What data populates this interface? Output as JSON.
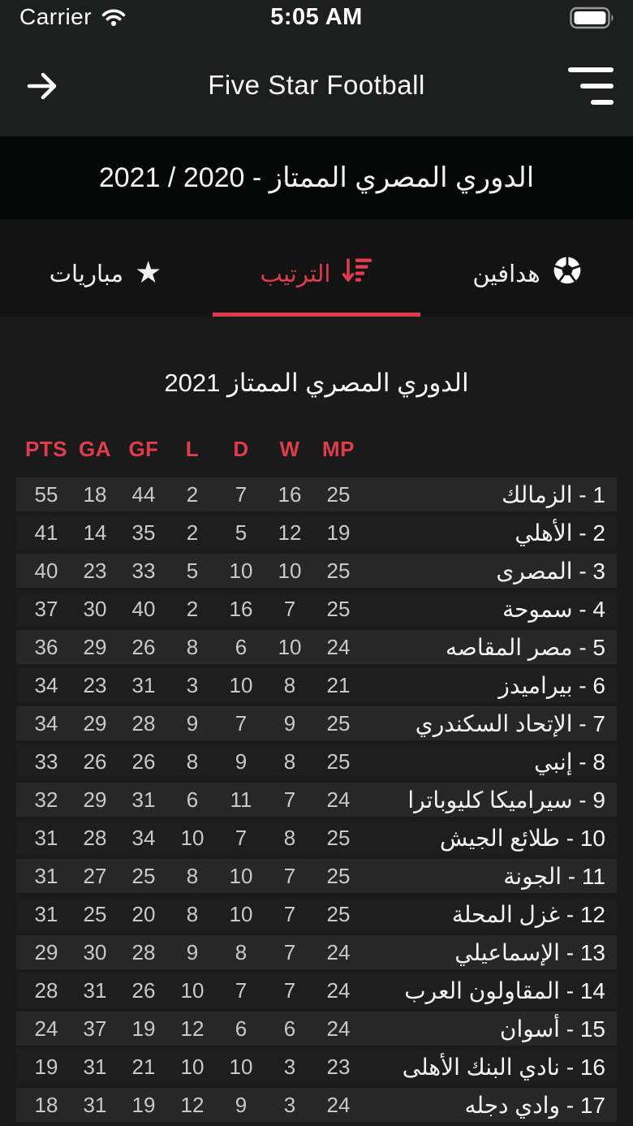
{
  "colors": {
    "accent": "#e03c4b",
    "banner_bg": "#050606",
    "row_stripe": "#272727"
  },
  "status_bar": {
    "carrier": "Carrier",
    "time": "5:05 AM",
    "icons": [
      "wifi-icon",
      "battery-icon"
    ],
    "battery_level": "full"
  },
  "app_bar": {
    "title": "Five Star Football",
    "back_icon": "arrow-right-icon",
    "menu_icon": "menu-filter-icon"
  },
  "league_banner": {
    "title": "الدوري المصري الممتاز - 2020 / 2021"
  },
  "tabs": [
    {
      "label": "هدافين",
      "icon": "soccer-ball-icon",
      "active": false
    },
    {
      "label": "الترتيب",
      "icon": "sort-descending-icon",
      "active": true
    },
    {
      "label": "مباريات",
      "icon": "star-icon",
      "active": false
    }
  ],
  "table": {
    "title": "الدوري المصري الممتاز 2021",
    "headers": [
      "PTS",
      "GA",
      "GF",
      "L",
      "D",
      "W",
      "MP"
    ],
    "rows": [
      {
        "team": "1 - الزمالك",
        "pts": 55,
        "ga": 18,
        "gf": 44,
        "l": 2,
        "d": 7,
        "w": 16,
        "mp": 25
      },
      {
        "team": "2 - الأهلي",
        "pts": 41,
        "ga": 14,
        "gf": 35,
        "l": 2,
        "d": 5,
        "w": 12,
        "mp": 19
      },
      {
        "team": "3 - المصرى",
        "pts": 40,
        "ga": 23,
        "gf": 33,
        "l": 5,
        "d": 10,
        "w": 10,
        "mp": 25
      },
      {
        "team": "4 - سموحة",
        "pts": 37,
        "ga": 30,
        "gf": 40,
        "l": 2,
        "d": 16,
        "w": 7,
        "mp": 25
      },
      {
        "team": "5 - مصر المقاصه",
        "pts": 36,
        "ga": 29,
        "gf": 26,
        "l": 8,
        "d": 6,
        "w": 10,
        "mp": 24
      },
      {
        "team": "6 - بيراميدز",
        "pts": 34,
        "ga": 23,
        "gf": 31,
        "l": 3,
        "d": 10,
        "w": 8,
        "mp": 21
      },
      {
        "team": "7 - الإتحاد السكندري",
        "pts": 34,
        "ga": 29,
        "gf": 28,
        "l": 9,
        "d": 7,
        "w": 9,
        "mp": 25
      },
      {
        "team": "8 - إنبي",
        "pts": 33,
        "ga": 26,
        "gf": 26,
        "l": 8,
        "d": 9,
        "w": 8,
        "mp": 25
      },
      {
        "team": "9 - سيراميكا كليوباترا",
        "pts": 32,
        "ga": 29,
        "gf": 31,
        "l": 6,
        "d": 11,
        "w": 7,
        "mp": 24
      },
      {
        "team": "10 - طلائع الجيش",
        "pts": 31,
        "ga": 28,
        "gf": 34,
        "l": 10,
        "d": 7,
        "w": 8,
        "mp": 25
      },
      {
        "team": "11 - الجونة",
        "pts": 31,
        "ga": 27,
        "gf": 25,
        "l": 8,
        "d": 10,
        "w": 7,
        "mp": 25
      },
      {
        "team": "12 - غزل المحلة",
        "pts": 31,
        "ga": 25,
        "gf": 20,
        "l": 8,
        "d": 10,
        "w": 7,
        "mp": 25
      },
      {
        "team": "13 - الإسماعيلي",
        "pts": 29,
        "ga": 30,
        "gf": 28,
        "l": 9,
        "d": 8,
        "w": 7,
        "mp": 24
      },
      {
        "team": "14 - المقاولون العرب",
        "pts": 28,
        "ga": 31,
        "gf": 26,
        "l": 10,
        "d": 7,
        "w": 7,
        "mp": 24
      },
      {
        "team": "15 - أسوان",
        "pts": 24,
        "ga": 37,
        "gf": 19,
        "l": 12,
        "d": 6,
        "w": 6,
        "mp": 24
      },
      {
        "team": "16 - نادي البنك الأهلى",
        "pts": 19,
        "ga": 31,
        "gf": 21,
        "l": 10,
        "d": 10,
        "w": 3,
        "mp": 23
      },
      {
        "team": "17 - وادي دجله",
        "pts": 18,
        "ga": 31,
        "gf": 19,
        "l": 12,
        "d": 9,
        "w": 3,
        "mp": 24
      }
    ]
  }
}
